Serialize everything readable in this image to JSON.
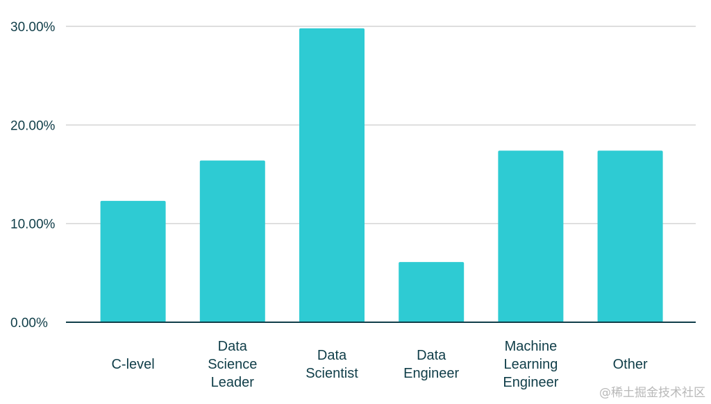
{
  "chart_data": {
    "type": "bar",
    "categories": [
      [
        "C-level"
      ],
      [
        "Data",
        "Science",
        "Leader"
      ],
      [
        "Data",
        "Scientist"
      ],
      [
        "Data",
        "Engineer"
      ],
      [
        "Machine",
        "Learning",
        "Engineer"
      ],
      [
        "Other"
      ]
    ],
    "values": [
      12.3,
      16.4,
      29.8,
      6.1,
      17.4,
      17.4
    ],
    "ylim": [
      0,
      30
    ],
    "yticks": [
      0,
      10,
      20,
      30
    ],
    "ytick_labels": [
      "0.00%",
      "10.00%",
      "20.00%",
      "30.00%"
    ],
    "title": "",
    "xlabel": "",
    "ylabel": "",
    "grid": true,
    "legend": "none",
    "bar_color": "#2ecbd3",
    "axis_color": "#0f3d48",
    "grid_color": "#d4d4d4"
  },
  "watermark": "@稀土掘金技术社区"
}
